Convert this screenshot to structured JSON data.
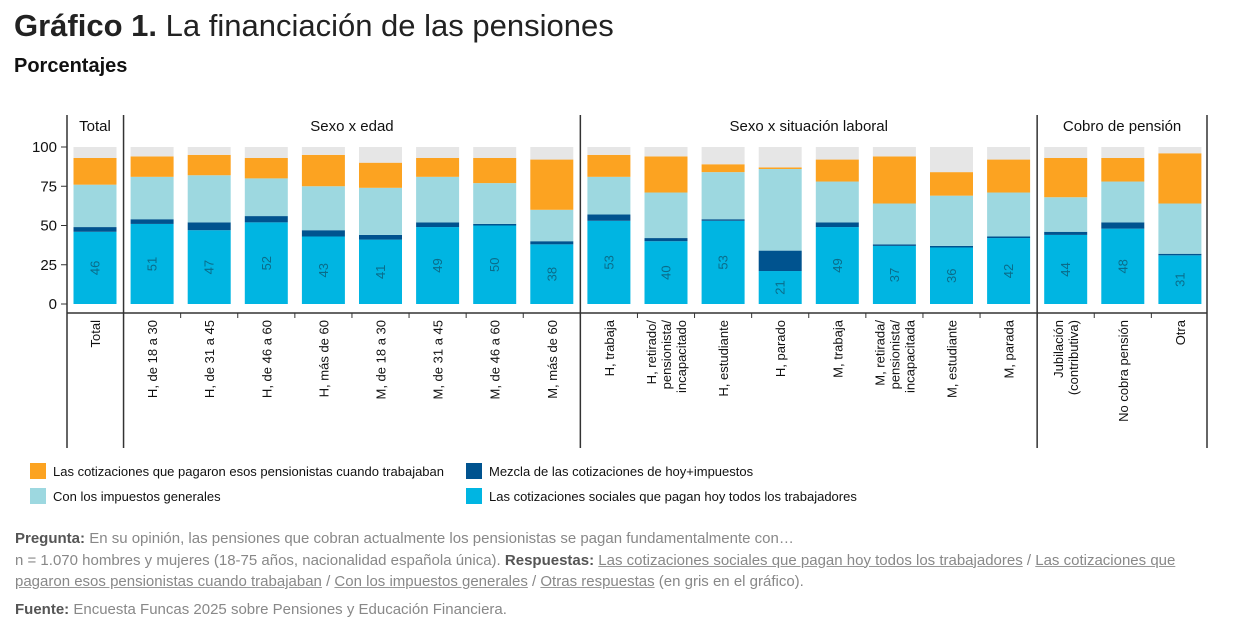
{
  "title": {
    "prefix": "Gráfico 1.",
    "text": "La financiación de las pensiones"
  },
  "subtitle": "Porcentajes",
  "chart_data": {
    "type": "stacked-bar",
    "ylim": [
      0,
      100
    ],
    "yticks": [
      0,
      25,
      50,
      75,
      100
    ],
    "groups": [
      {
        "label": "Total",
        "count": 1
      },
      {
        "label": "Sexo x edad",
        "count": 8
      },
      {
        "label": "Sexo x situación laboral",
        "count": 8
      },
      {
        "label": "Cobro de pensión",
        "count": 3
      }
    ],
    "categories": [
      [
        "Total"
      ],
      [
        "H, de 18 a 30"
      ],
      [
        "H, de 31 a 45"
      ],
      [
        "H, de 46 a 60"
      ],
      [
        "H, más de 60"
      ],
      [
        "M, de 18 a 30"
      ],
      [
        "M, de 31 a 45"
      ],
      [
        "M, de 46 a 60"
      ],
      [
        "M, más de 60"
      ],
      [
        "H, trabaja"
      ],
      [
        "H, retirado/",
        "pensionista/",
        "incapacitado"
      ],
      [
        "H, estudiante"
      ],
      [
        "H, parado"
      ],
      [
        "M, trabaja"
      ],
      [
        "M, retirada/",
        "pensionista/",
        "incapacitada"
      ],
      [
        "M, estudiante"
      ],
      [
        "M, parada"
      ],
      [
        "Jubilación",
        "(contributiva)"
      ],
      [
        "No cobra pensión"
      ],
      [
        "Otra"
      ]
    ],
    "series": [
      {
        "name": "Las cotizaciones sociales que pagan hoy todos los trabajadores",
        "color": "#00b5e2",
        "values": [
          46,
          51,
          47,
          52,
          43,
          41,
          49,
          50,
          38,
          53,
          40,
          53,
          21,
          49,
          37,
          36,
          42,
          44,
          48,
          31
        ]
      },
      {
        "name": "Mezcla de las cotizaciones de hoy+impuestos",
        "color": "#00538f",
        "values": [
          3,
          3,
          5,
          4,
          4,
          3,
          3,
          1,
          2,
          4,
          2,
          1,
          13,
          3,
          1,
          1,
          1,
          2,
          4,
          1
        ]
      },
      {
        "name": "Con los impuestos generales",
        "color": "#9dd8e0",
        "values": [
          27,
          27,
          30,
          24,
          28,
          30,
          29,
          26,
          20,
          24,
          29,
          30,
          52,
          26,
          26,
          32,
          28,
          22,
          26,
          32
        ]
      },
      {
        "name": "Las cotizaciones que pagaron esos pensionistas cuando trabajaban",
        "color": "#fca321",
        "values": [
          17,
          13,
          13,
          13,
          20,
          16,
          12,
          16,
          32,
          14,
          23,
          5,
          1,
          14,
          30,
          15,
          21,
          25,
          15,
          32
        ]
      },
      {
        "name": "Otras respuestas",
        "color": "#e6e6e6",
        "values": [
          7,
          6,
          5,
          7,
          5,
          10,
          7,
          7,
          8,
          5,
          6,
          11,
          13,
          8,
          6,
          16,
          8,
          7,
          7,
          4
        ]
      }
    ],
    "data_labels_series": 0,
    "legend": [
      {
        "label": "Las cotizaciones que pagaron esos pensionistas cuando trabajaban",
        "color": "#fca321"
      },
      {
        "label": "Mezcla de las cotizaciones de hoy+impuestos",
        "color": "#00538f"
      },
      {
        "label": "Con los impuestos generales",
        "color": "#9dd8e0"
      },
      {
        "label": "Las cotizaciones sociales que pagan hoy todos los trabajadores",
        "color": "#00b5e2"
      }
    ],
    "legend_position": "bottom-left"
  },
  "notes": {
    "pregunta_label": "Pregunta:",
    "pregunta": "En su opinión, las pensiones que cobran actualmente los pensionistas se pagan fundamentalmente con…",
    "muestra": "n = 1.070 hombres y mujeres (18-75 años,  nacionalidad española única).",
    "respuestas_label": "Respuestas:",
    "resp1": "Las cotizaciones sociales que pagan hoy todos los trabajadores",
    "resp2": "Las cotizaciones que pagaron esos pensionistas cuando trabajaban",
    "resp3": "Con los impuestos generales",
    "resp4": "Otras respuestas",
    "resp_tail": "(en gris en el gráfico).",
    "sep": "/",
    "fuente_label": "Fuente:",
    "fuente": "Encuesta Funcas 2025 sobre Pensiones y Educación Financiera."
  }
}
